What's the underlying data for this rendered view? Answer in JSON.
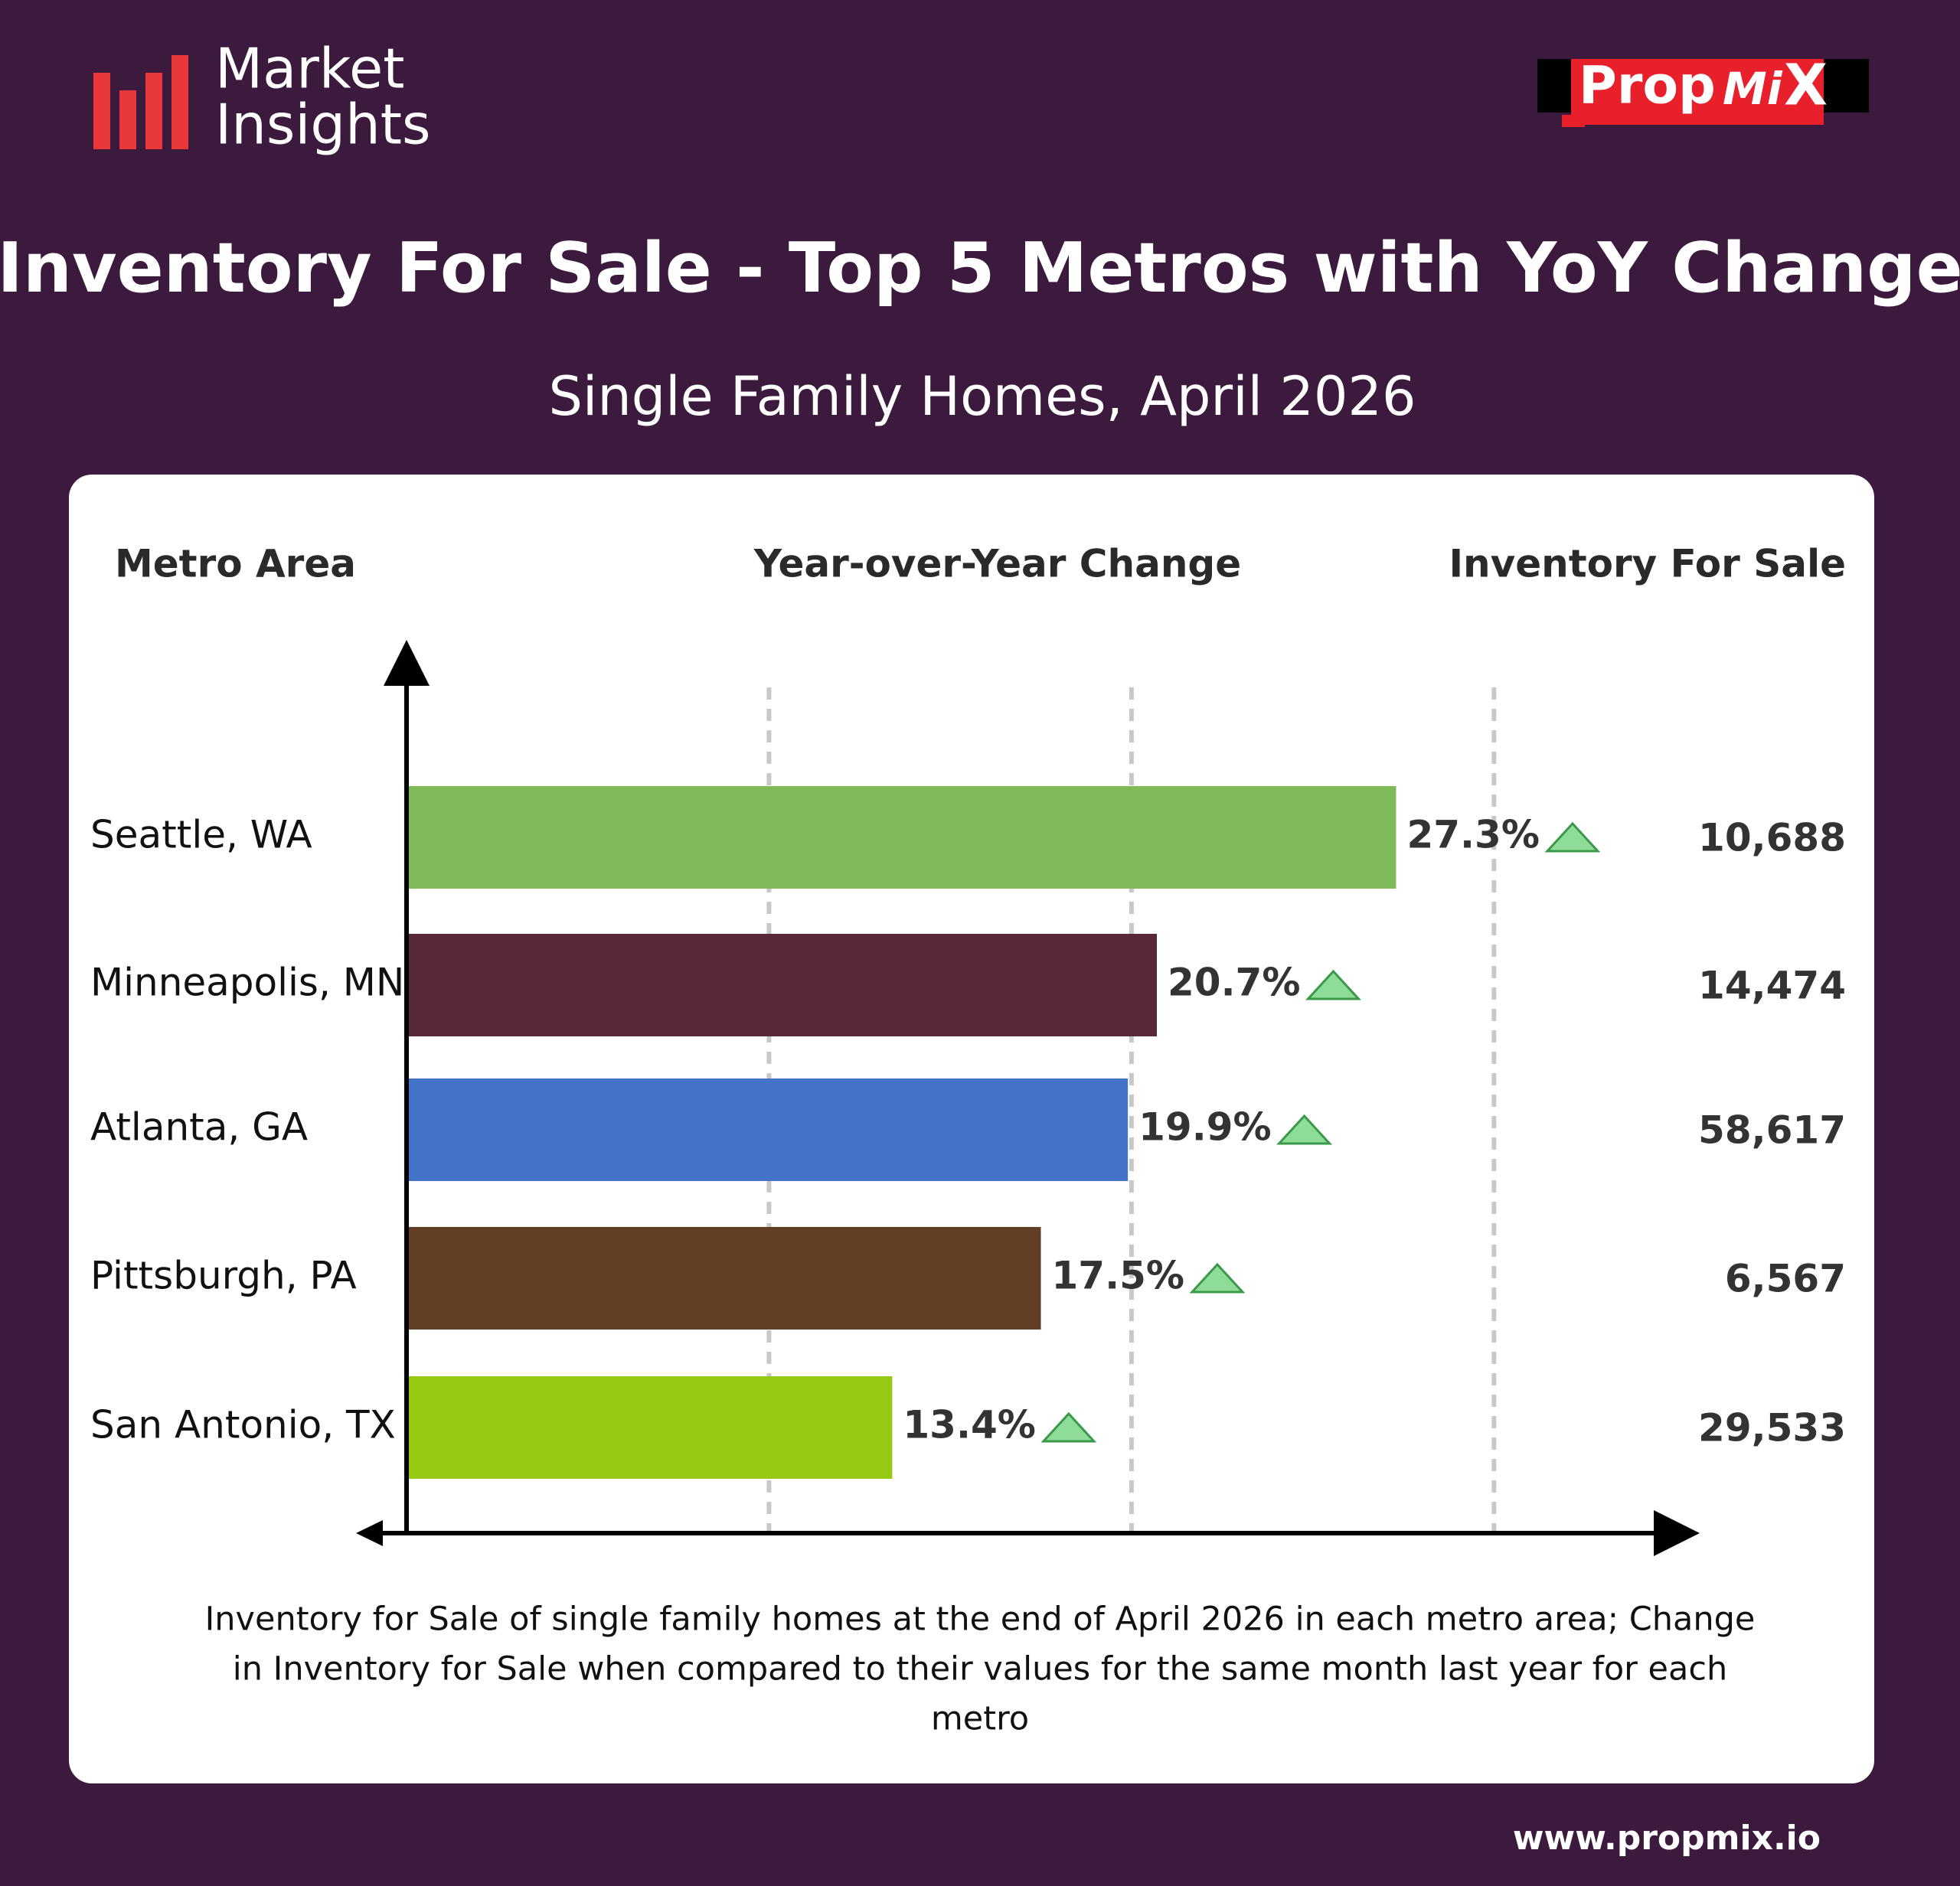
{
  "header": {
    "brand_lines": [
      "Market",
      "Insights"
    ],
    "logo_parts": [
      "Prop",
      "Mi",
      "X"
    ]
  },
  "chart_data": {
    "type": "bar",
    "orientation": "horizontal",
    "title": "Inventory For Sale - Top 5 Metros with YoY Change",
    "subtitle": "Single Family Homes, April 2026",
    "category_header": "Metro Area",
    "categories": [
      "Seattle, WA",
      "Minneapolis, MN",
      "Atlanta, GA",
      "Pittsburgh, PA",
      "San Antonio, TX"
    ],
    "series": [
      {
        "name": "Year-over-Year Change",
        "values": [
          27.3,
          20.7,
          19.9,
          17.5,
          13.4
        ],
        "value_labels": [
          "27.3%",
          "20.7%",
          "19.9%",
          "17.5%",
          "13.4%"
        ],
        "colors": [
          "#7fba58",
          "#56283a",
          "#4472c9",
          "#613e24",
          "#97c813"
        ]
      }
    ],
    "inventory": {
      "name": "Inventory For Sale",
      "values": [
        10688,
        14474,
        58617,
        6567,
        29533
      ],
      "value_labels": [
        "10,688",
        "14,474",
        "58,617",
        "6,567",
        "29,533"
      ]
    },
    "xlim": [
      0,
      35
    ],
    "xticks": [
      10,
      20,
      30
    ],
    "grid": true,
    "note_lines": [
      "Inventory for Sale of single family homes at the end of April 2026 in each metro area; Change",
      "in Inventory for Sale when compared to their values for the same month last year for each",
      "metro"
    ]
  },
  "footer": {
    "website": "www.propmix.io"
  }
}
